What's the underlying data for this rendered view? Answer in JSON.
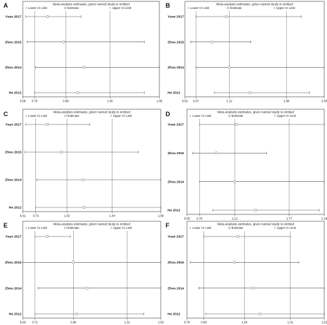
{
  "chart_data": [
    {
      "panel": "A",
      "type": "forest",
      "title": "Meta-analysis estimates, given named study is omitted",
      "legend": [
        "Lower CI Limit",
        "Estimate",
        "Upper CI Limit"
      ],
      "ticks": [
        "0.59",
        "0.70",
        "0.99",
        "1.40",
        "1.86"
      ],
      "xlim": [
        0.59,
        1.86
      ],
      "reference": [
        0.7,
        0.99,
        1.4
      ],
      "studies": [
        {
          "name": "Yuan 2017",
          "lower": 0.62,
          "estimate": 0.82,
          "upper": 1.13
        },
        {
          "name": "Zhou 2015",
          "lower": 0.63,
          "estimate": 0.97,
          "upper": 1.72
        },
        {
          "name": "Zhou 2014",
          "lower": 0.71,
          "estimate": 1.16,
          "upper": 1.86
        },
        {
          "name": "He 2012",
          "lower": 0.7,
          "estimate": 1.1,
          "upper": 1.72
        }
      ]
    },
    {
      "panel": "B",
      "type": "forest",
      "title": "Meta-analysis estimates, given named study is omitted",
      "legend": [
        "Lower CI Limit",
        "Estimate",
        "Upper CI Limit"
      ],
      "ticks": [
        "0.52",
        "0.67",
        "1.12",
        "1.89",
        "2.40"
      ],
      "xlim": [
        0.52,
        2.4
      ],
      "reference": [
        0.67,
        1.12,
        1.89
      ],
      "studies": [
        {
          "name": "Yuan 2017",
          "lower": 0.67,
          "estimate": 1.08,
          "upper": 2.09
        },
        {
          "name": "Zhou 2015",
          "lower": 0.6,
          "estimate": 0.89,
          "upper": 1.41
        },
        {
          "name": "Zhou 2014",
          "lower": 0.67,
          "estimate": 1.12,
          "upper": 2.4
        },
        {
          "name": "He 2012",
          "lower": 0.92,
          "estimate": 1.4,
          "upper": 2.2
        }
      ]
    },
    {
      "panel": "C",
      "type": "forest",
      "title": "Meta-analysis estimates, given named study is omitted",
      "legend": [
        "Lower CI Limit",
        "Estimate",
        "Upper CI Limit"
      ],
      "ticks": [
        "0.61",
        "0.73",
        "1.02",
        "1.44",
        "1.89"
      ],
      "xlim": [
        0.61,
        1.89
      ],
      "reference": [
        0.73,
        1.02,
        1.44
      ],
      "studies": [
        {
          "name": "Yuan 2017",
          "lower": 0.64,
          "estimate": 0.84,
          "upper": 1.23
        },
        {
          "name": "Zhou 2015",
          "lower": 0.63,
          "estimate": 0.97,
          "upper": 1.68
        },
        {
          "name": "Zhou 2014",
          "lower": 0.74,
          "estimate": 1.17,
          "upper": 1.89
        },
        {
          "name": "He 2012",
          "lower": 0.73,
          "estimate": 1.18,
          "upper": 1.89
        }
      ]
    },
    {
      "panel": "D",
      "type": "forest",
      "title": "Meta-analysis estimates, given named study is omitted",
      "legend": [
        "Lower CI Limit",
        "Estimate",
        "Upper CI Limit"
      ],
      "ticks": [
        "0.55",
        "0.70",
        "1.12",
        "1.77",
        "2.19"
      ],
      "xlim": [
        0.55,
        2.19
      ],
      "reference": [
        0.7,
        1.12,
        1.77
      ],
      "studies": [
        {
          "name": "Yuan 2017",
          "lower": 0.7,
          "estimate": 1.14,
          "upper": 2.19
        },
        {
          "name": "Zhou 2015",
          "lower": 0.62,
          "estimate": 0.9,
          "upper": 1.5
        },
        {
          "name": "Zhou 2014",
          "lower": 0.7,
          "estimate": 1.12,
          "upper": 2.19
        },
        {
          "name": "He 2012",
          "lower": 0.86,
          "estimate": 1.37,
          "upper": 2.13
        }
      ]
    },
    {
      "panel": "E",
      "type": "forest",
      "title": "Meta-analysis estimates, given named study is omitted",
      "legend": [
        "Lower CI Limit",
        "Estimate",
        "Upper CI Limit"
      ],
      "ticks": [
        "0.63",
        "0.71",
        "0.96",
        "1.31",
        "1.53"
      ],
      "xlim": [
        0.63,
        1.53
      ],
      "reference": [
        0.71,
        0.96,
        1.31
      ],
      "studies": [
        {
          "name": "Yuan 2017",
          "lower": 0.71,
          "estimate": 0.79,
          "upper": 0.94
        },
        {
          "name": "Zhou 2015",
          "lower": 0.63,
          "estimate": 0.96,
          "upper": 1.53
        },
        {
          "name": "Zhou 2014",
          "lower": 0.73,
          "estimate": 1.05,
          "upper": 1.53
        },
        {
          "name": "He 2012",
          "lower": 0.71,
          "estimate": 0.98,
          "upper": 1.42
        }
      ]
    },
    {
      "panel": "F",
      "type": "forest",
      "title": "Meta-analysis estimates, given named study is omitted",
      "legend": [
        "Lower CI Limit",
        "Estimate",
        "Upper CI Limit"
      ],
      "ticks": [
        "0.70",
        "0.80",
        "1.04",
        "1.31",
        "1.51"
      ],
      "xlim": [
        0.7,
        1.51
      ],
      "reference": [
        0.8,
        1.04,
        1.31
      ],
      "studies": [
        {
          "name": "Yuan 2017",
          "lower": 0.8,
          "estimate": 1.0,
          "upper": 1.31
        },
        {
          "name": "Zhou 2015",
          "lower": 0.72,
          "estimate": 0.98,
          "upper": 1.36
        },
        {
          "name": "Zhou 2014",
          "lower": 0.77,
          "estimate": 1.09,
          "upper": 1.51
        },
        {
          "name": "He 2012",
          "lower": 0.81,
          "estimate": 1.13,
          "upper": 1.51
        }
      ]
    }
  ]
}
